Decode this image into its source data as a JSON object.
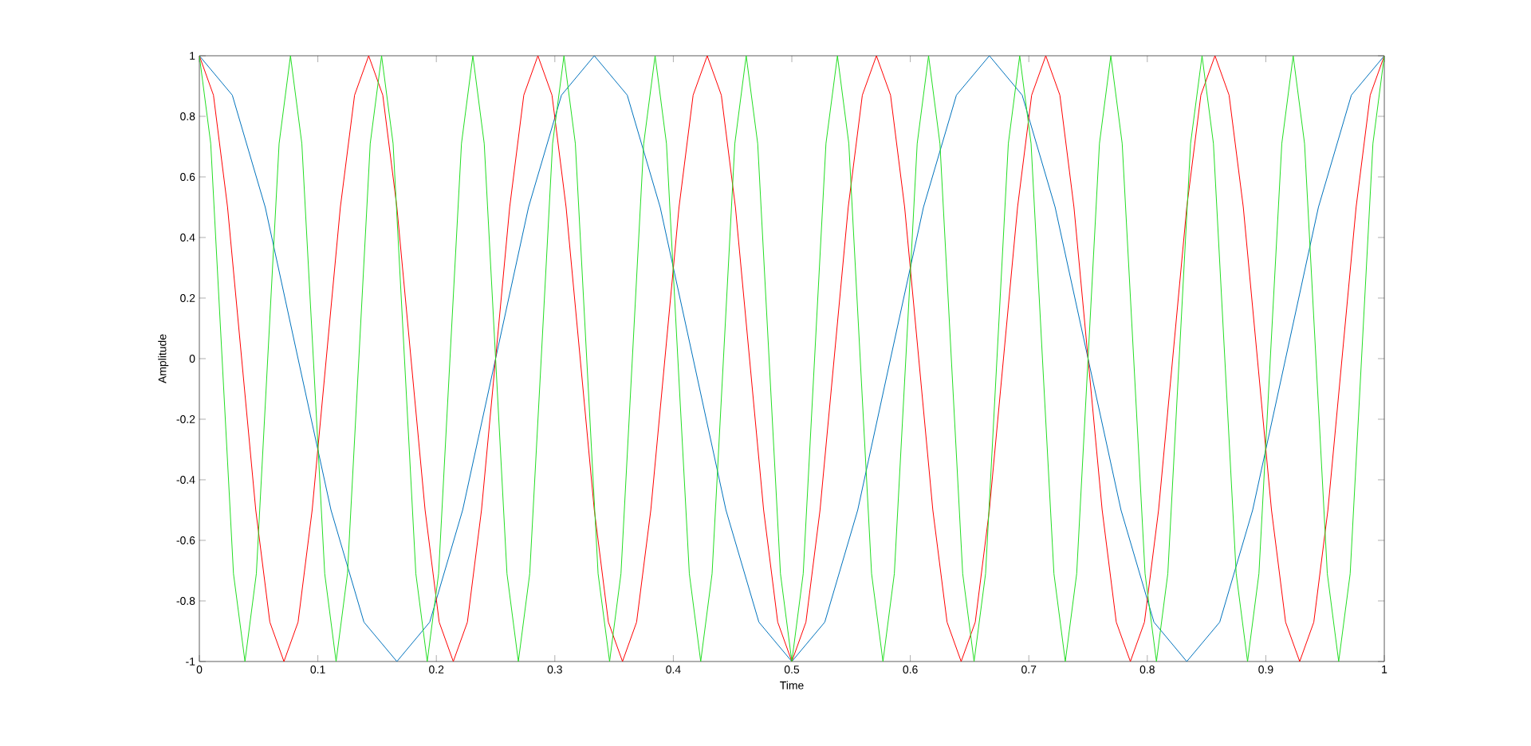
{
  "chart_data": {
    "type": "line",
    "xlabel": "Time",
    "ylabel": "Amplitude",
    "xlim": [
      0,
      1
    ],
    "ylim": [
      -1,
      1
    ],
    "xticks": [
      0,
      0.1,
      0.2,
      0.3,
      0.4,
      0.5,
      0.6,
      0.7,
      0.8,
      0.9,
      1
    ],
    "yticks": [
      -1,
      -0.8,
      -0.6,
      -0.4,
      -0.2,
      0,
      0.2,
      0.4,
      0.6,
      0.8,
      1
    ],
    "series": [
      {
        "color": "#0072bd",
        "x": [
          0,
          0.0278,
          0.0556,
          0.0833,
          0.1111,
          0.1389,
          0.1667,
          0.1944,
          0.2222,
          0.25,
          0.2778,
          0.3056,
          0.3333,
          0.3611,
          0.3889,
          0.4167,
          0.4444,
          0.4722,
          0.5,
          0.5278,
          0.5556,
          0.5833,
          0.6111,
          0.6389,
          0.6667,
          0.6944,
          0.7222,
          0.75,
          0.7778,
          0.8056,
          0.8333,
          0.8611,
          0.8889,
          0.9167,
          0.9444,
          0.9722,
          1
        ],
        "values": [
          1,
          0.87,
          0.5,
          0,
          -0.5,
          -0.87,
          -1,
          -0.87,
          -0.5,
          0,
          0.5,
          0.87,
          1,
          0.87,
          0.5,
          0,
          -0.5,
          -0.87,
          -1,
          -0.87,
          -0.5,
          0,
          0.5,
          0.87,
          1,
          0.87,
          0.5,
          0,
          -0.5,
          -0.87,
          -1,
          -0.87,
          -0.5,
          0,
          0.5,
          0.87,
          1
        ]
      },
      {
        "color": "#ff0000",
        "x": [
          0,
          0.0119,
          0.0238,
          0.0357,
          0.0476,
          0.0595,
          0.0714,
          0.0833,
          0.0952,
          0.1071,
          0.119,
          0.131,
          0.1429,
          0.1548,
          0.1667,
          0.1786,
          0.1905,
          0.2024,
          0.2143,
          0.2262,
          0.2381,
          0.25,
          0.2619,
          0.2738,
          0.2857,
          0.2976,
          0.3095,
          0.3214,
          0.3333,
          0.3452,
          0.3571,
          0.369,
          0.381,
          0.3929,
          0.4048,
          0.4167,
          0.4286,
          0.4405,
          0.4524,
          0.4643,
          0.4762,
          0.4881,
          0.5,
          0.5119,
          0.5238,
          0.5357,
          0.5476,
          0.5595,
          0.5714,
          0.5833,
          0.5952,
          0.6071,
          0.619,
          0.631,
          0.6429,
          0.6548,
          0.6667,
          0.6786,
          0.6905,
          0.7024,
          0.7143,
          0.7262,
          0.7381,
          0.75,
          0.7619,
          0.7738,
          0.7857,
          0.7976,
          0.8095,
          0.8214,
          0.8333,
          0.8452,
          0.8571,
          0.869,
          0.881,
          0.8929,
          0.9048,
          0.9167,
          0.9286,
          0.9405,
          0.9524,
          0.9643,
          0.9762,
          0.9881,
          1
        ],
        "values": [
          1,
          0.87,
          0.5,
          0,
          -0.5,
          -0.87,
          -1,
          -0.87,
          -0.5,
          0,
          0.5,
          0.87,
          1,
          0.87,
          0.5,
          0,
          -0.5,
          -0.87,
          -1,
          -0.87,
          -0.5,
          0,
          0.5,
          0.87,
          1,
          0.87,
          0.5,
          0,
          -0.5,
          -0.87,
          -1,
          -0.87,
          -0.5,
          0,
          0.5,
          0.87,
          1,
          0.87,
          0.5,
          0,
          -0.5,
          -0.87,
          -1,
          -0.87,
          -0.5,
          0,
          0.5,
          0.87,
          1,
          0.87,
          0.5,
          0,
          -0.5,
          -0.87,
          -1,
          -0.87,
          -0.5,
          0,
          0.5,
          0.87,
          1,
          0.87,
          0.5,
          0,
          -0.5,
          -0.87,
          -1,
          -0.87,
          -0.5,
          0,
          0.5,
          0.87,
          1,
          0.87,
          0.5,
          0,
          -0.5,
          -0.87,
          -1,
          -0.87,
          -0.5,
          0,
          0.5,
          0.87,
          1
        ]
      },
      {
        "color": "#22dd22",
        "x": [
          0,
          0.0096,
          0.0192,
          0.0288,
          0.0385,
          0.0481,
          0.0577,
          0.0673,
          0.0769,
          0.0865,
          0.0962,
          0.1058,
          0.1154,
          0.125,
          0.1346,
          0.1442,
          0.1538,
          0.1635,
          0.1731,
          0.1827,
          0.1923,
          0.2019,
          0.2115,
          0.2212,
          0.2308,
          0.2404,
          0.25,
          0.2596,
          0.2692,
          0.2788,
          0.2885,
          0.2981,
          0.3077,
          0.3173,
          0.3269,
          0.3365,
          0.3462,
          0.3558,
          0.3654,
          0.375,
          0.3846,
          0.3942,
          0.4038,
          0.4135,
          0.4231,
          0.4327,
          0.4423,
          0.4519,
          0.4615,
          0.4712,
          0.4808,
          0.4904,
          0.5,
          0.5096,
          0.5192,
          0.5288,
          0.5385,
          0.5481,
          0.5577,
          0.5673,
          0.5769,
          0.5865,
          0.5962,
          0.6058,
          0.6154,
          0.625,
          0.6346,
          0.6442,
          0.6538,
          0.6635,
          0.6731,
          0.6827,
          0.6923,
          0.7019,
          0.7115,
          0.7212,
          0.7308,
          0.7404,
          0.75,
          0.7596,
          0.7692,
          0.7788,
          0.7885,
          0.7981,
          0.8077,
          0.8173,
          0.8269,
          0.8365,
          0.8462,
          0.8558,
          0.8654,
          0.875,
          0.8846,
          0.8942,
          0.9038,
          0.9135,
          0.9231,
          0.9327,
          0.9423,
          0.9519,
          0.9615,
          0.9712,
          0.9808,
          0.9904,
          1
        ],
        "values": [
          1,
          0.71,
          0,
          -0.71,
          -1,
          -0.71,
          0,
          0.71,
          1,
          0.71,
          0,
          -0.71,
          -1,
          -0.71,
          0,
          0.71,
          1,
          0.71,
          0,
          -0.71,
          -1,
          -0.71,
          0,
          0.71,
          1,
          0.71,
          0,
          -0.71,
          -1,
          -0.71,
          0,
          0.71,
          1,
          0.71,
          0,
          -0.71,
          -1,
          -0.71,
          0,
          0.71,
          1,
          0.71,
          0,
          -0.71,
          -1,
          -0.71,
          0,
          0.71,
          1,
          0.71,
          0,
          -0.71,
          -1,
          -0.71,
          0,
          0.71,
          1,
          0.71,
          0,
          -0.71,
          -1,
          -0.71,
          0,
          0.71,
          1,
          0.71,
          0,
          -0.71,
          -1,
          -0.71,
          0,
          0.71,
          1,
          0.71,
          0,
          -0.71,
          -1,
          -0.71,
          0,
          0.71,
          1,
          0.71,
          0,
          -0.71,
          -1,
          -0.71,
          0,
          0.71,
          1,
          0.71,
          0,
          -0.71,
          -1,
          -0.71,
          0,
          0.71,
          1,
          0.71,
          0,
          -0.71,
          -1,
          -0.71,
          0,
          0.71,
          1
        ]
      }
    ]
  }
}
